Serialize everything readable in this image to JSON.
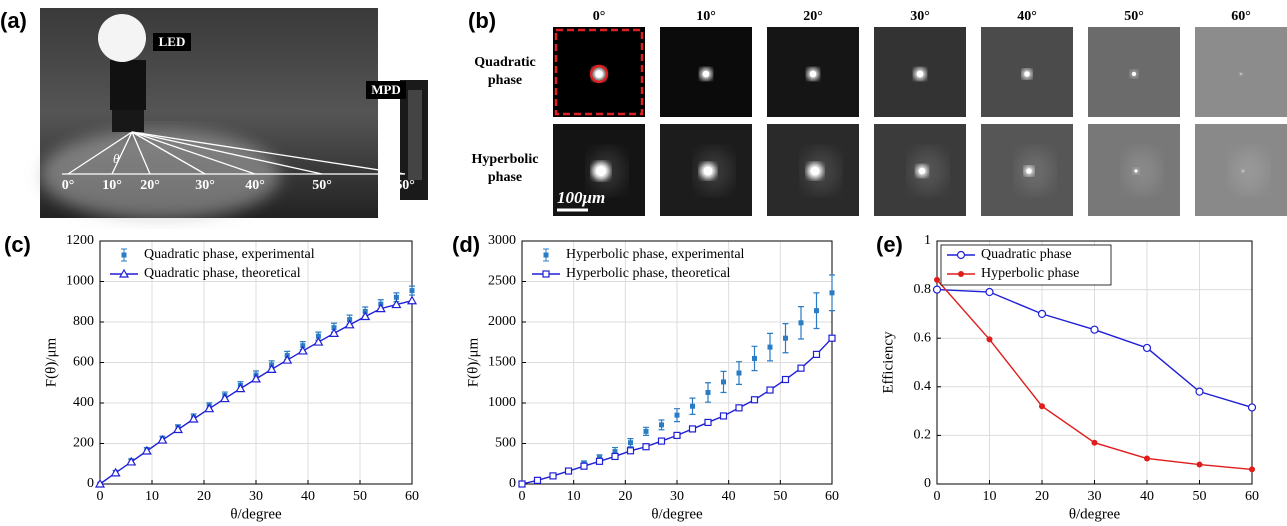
{
  "panel_labels": [
    "(a)",
    "(b)",
    "(c)",
    "(d)",
    "(e)"
  ],
  "photo_a": {
    "labels": [
      "LED",
      "MPD",
      "θ"
    ],
    "angles": [
      "0°",
      "10°",
      "20°",
      "30°",
      "40°",
      "50°",
      "60°"
    ]
  },
  "panel_b": {
    "columns": [
      "0°",
      "10°",
      "20°",
      "30°",
      "40°",
      "50°",
      "60°"
    ],
    "rows": [
      [
        "Quadratic",
        "phase"
      ],
      [
        "Hyperbolic",
        "phase"
      ]
    ],
    "scale_bar": "100μm"
  },
  "chart_data": [
    {
      "type": "line",
      "xlabel": "θ/degree",
      "ylabel": "F(θ)/μm",
      "x": [
        0,
        3,
        6,
        9,
        12,
        15,
        18,
        21,
        24,
        27,
        30,
        33,
        36,
        39,
        42,
        45,
        48,
        51,
        54,
        57,
        60
      ],
      "xlim": [
        0,
        60
      ],
      "xticks": [
        0,
        10,
        20,
        30,
        40,
        50,
        60
      ],
      "ylim": [
        0,
        1200
      ],
      "yticks": [
        0,
        200,
        400,
        600,
        800,
        1000,
        1200
      ],
      "grid": true,
      "legend": "upper left",
      "series": [
        {
          "name": "Quadratic phase, experimental",
          "color": "#2a7cc4",
          "marker": "square-dot",
          "line": false,
          "values": [
            0,
            57,
            112,
            168,
            222,
            277,
            330,
            385,
            437,
            487,
            538,
            588,
            635,
            683,
            730,
            772,
            812,
            852,
            888,
            922,
            955
          ],
          "errors": [
            5,
            10,
            12,
            12,
            14,
            15,
            16,
            16,
            17,
            18,
            20,
            20,
            20,
            20,
            20,
            22,
            22,
            22,
            22,
            22,
            22
          ]
        },
        {
          "name": "Quadratic phase, theoretical",
          "color": "#1f1fd6",
          "marker": "triangle",
          "line": true,
          "values": [
            0,
            55,
            109,
            163,
            217,
            269,
            321,
            372,
            422,
            471,
            519,
            566,
            612,
            657,
            701,
            744,
            786,
            827,
            866,
            886,
            905
          ]
        }
      ]
    },
    {
      "type": "line",
      "xlabel": "θ/degree",
      "ylabel": "F(θ)/μm",
      "x": [
        0,
        3,
        6,
        9,
        12,
        15,
        18,
        21,
        24,
        27,
        30,
        33,
        36,
        39,
        42,
        45,
        48,
        51,
        54,
        57,
        60
      ],
      "xlim": [
        0,
        60
      ],
      "xticks": [
        0,
        10,
        20,
        30,
        40,
        50,
        60
      ],
      "ylim": [
        0,
        3000
      ],
      "yticks": [
        0,
        500,
        1000,
        1500,
        2000,
        2500,
        3000
      ],
      "grid": true,
      "legend": "upper left",
      "series": [
        {
          "name": "Hyperbolic phase, experimental",
          "color": "#2a7cc4",
          "marker": "square-dot",
          "line": false,
          "values": [
            0,
            50,
            110,
            170,
            255,
            320,
            400,
            510,
            650,
            730,
            850,
            960,
            1130,
            1260,
            1370,
            1550,
            1690,
            1800,
            1990,
            2140,
            2360
          ],
          "errors": [
            10,
            15,
            20,
            25,
            30,
            40,
            50,
            50,
            50,
            60,
            80,
            100,
            120,
            130,
            140,
            150,
            170,
            180,
            200,
            220,
            220
          ]
        },
        {
          "name": "Hyperbolic phase, theoretical",
          "color": "#1f1fd6",
          "marker": "square",
          "line": true,
          "values": [
            0,
            45,
            100,
            160,
            220,
            280,
            340,
            410,
            460,
            530,
            600,
            680,
            760,
            840,
            940,
            1040,
            1160,
            1290,
            1430,
            1600,
            1800
          ]
        }
      ]
    },
    {
      "type": "line",
      "xlabel": "θ/degree",
      "ylabel": "Efficiency",
      "x": [
        0,
        10,
        20,
        30,
        40,
        50,
        60
      ],
      "xlim": [
        0,
        60
      ],
      "xticks": [
        0,
        10,
        20,
        30,
        40,
        50,
        60
      ],
      "ylim": [
        0,
        1
      ],
      "yticks": [
        0,
        0.2,
        0.4,
        0.6,
        0.8,
        1
      ],
      "grid": true,
      "legend": "upper left",
      "legend_box": true,
      "series": [
        {
          "name": "Quadratic phase",
          "color": "#1f1fd6",
          "marker": "circle",
          "line": true,
          "values": [
            0.8,
            0.79,
            0.7,
            0.635,
            0.56,
            0.38,
            0.315
          ]
        },
        {
          "name": "Hyperbolic phase",
          "color": "#e01c1c",
          "marker": "dot",
          "line": true,
          "values": [
            0.84,
            0.595,
            0.32,
            0.17,
            0.105,
            0.08,
            0.06
          ]
        }
      ]
    }
  ]
}
